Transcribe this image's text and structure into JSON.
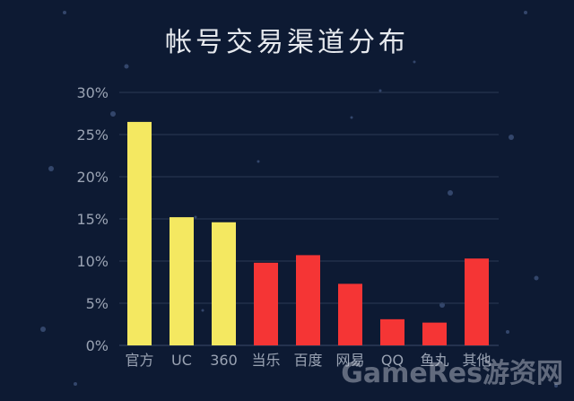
{
  "chart_data": {
    "type": "bar",
    "title": "帐号交易渠道分布",
    "categories": [
      "官方",
      "UC",
      "360",
      "当乐",
      "百度",
      "网易",
      "QQ",
      "鱼丸",
      "其他"
    ],
    "values": [
      26.5,
      15.2,
      14.6,
      9.8,
      10.7,
      7.3,
      3.1,
      2.7,
      10.3
    ],
    "bar_colors": [
      "#f4e861",
      "#f4e861",
      "#f4e861",
      "#f53535",
      "#f53535",
      "#f53535",
      "#f53535",
      "#f53535",
      "#f53535"
    ],
    "ylim": [
      0,
      30
    ],
    "yticks": [
      "0%",
      "5%",
      "10%",
      "15%",
      "20%",
      "25%",
      "30%"
    ],
    "xlabel": "",
    "ylabel": "",
    "grid": true
  },
  "watermark": "GameRes游资网",
  "colors": {
    "background": "#0d1a33",
    "grid": "#2b3a55",
    "highlight": "#f4e861",
    "other": "#f53535"
  }
}
